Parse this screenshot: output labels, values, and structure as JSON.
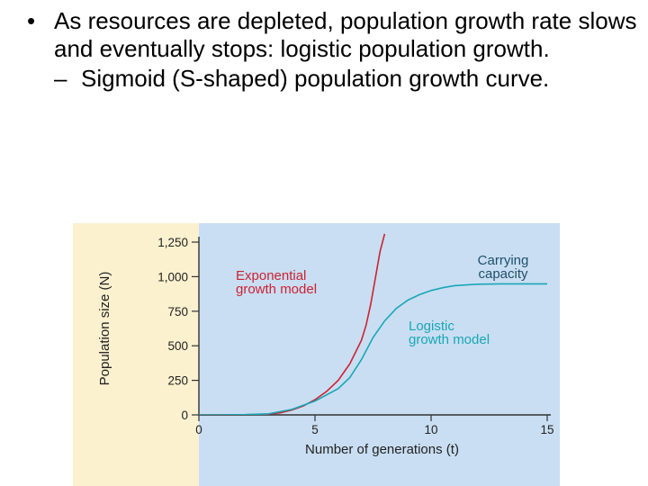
{
  "slide": {
    "bullet_1": "As resources are depleted, population growth rate slows and eventually stops: logistic population growth.",
    "sub_bullet": "Sigmoid (S-shaped) population growth curve.",
    "bullet_char": "•",
    "dash_char": "–"
  },
  "chart_data": {
    "type": "line",
    "xlabel": "Number of generations (t)",
    "ylabel": "Population size (N)",
    "xlim": [
      0,
      15
    ],
    "ylim": [
      0,
      1250
    ],
    "x_ticks": [
      0,
      5,
      10,
      15
    ],
    "x_tick_labels": [
      "0",
      "5",
      "10",
      "15"
    ],
    "y_ticks": [
      0,
      250,
      500,
      750,
      1000,
      1250
    ],
    "y_tick_labels": [
      "0",
      "250",
      "500",
      "750",
      "1,000",
      "1,250"
    ],
    "grid": false,
    "colors": {
      "exponential": "#cc2233",
      "logistic": "#1aa6b7",
      "carrying_capacity_label": "#1e4f6b",
      "plot_background": "#c9def2",
      "figure_background": "#fbf1cf"
    },
    "series": [
      {
        "name": "Exponential growth model",
        "label_lines": [
          "Exponential",
          "growth model"
        ],
        "x": [
          0,
          1,
          2,
          3,
          3.5,
          4,
          4.5,
          5,
          5.5,
          6,
          6.5,
          7,
          7.2,
          7.4,
          7.6,
          7.8,
          8.0
        ],
        "y": [
          0,
          0,
          1,
          5,
          15,
          35,
          65,
          110,
          170,
          250,
          370,
          540,
          650,
          800,
          990,
          1180,
          1310
        ]
      },
      {
        "name": "Logistic growth model",
        "label_lines": [
          "Logistic",
          "growth model"
        ],
        "x": [
          0,
          1,
          2,
          3,
          4,
          5,
          6,
          6.5,
          7,
          7.5,
          8,
          8.5,
          9,
          9.5,
          10,
          10.5,
          11,
          12,
          13,
          14,
          15
        ],
        "y": [
          0,
          0,
          2,
          8,
          40,
          100,
          190,
          270,
          400,
          560,
          680,
          770,
          830,
          870,
          900,
          920,
          935,
          945,
          948,
          948,
          948
        ]
      }
    ],
    "annotations": [
      {
        "text_lines": [
          "Carrying",
          "capacity"
        ],
        "target": "carrying capacity",
        "value": 948
      }
    ]
  }
}
